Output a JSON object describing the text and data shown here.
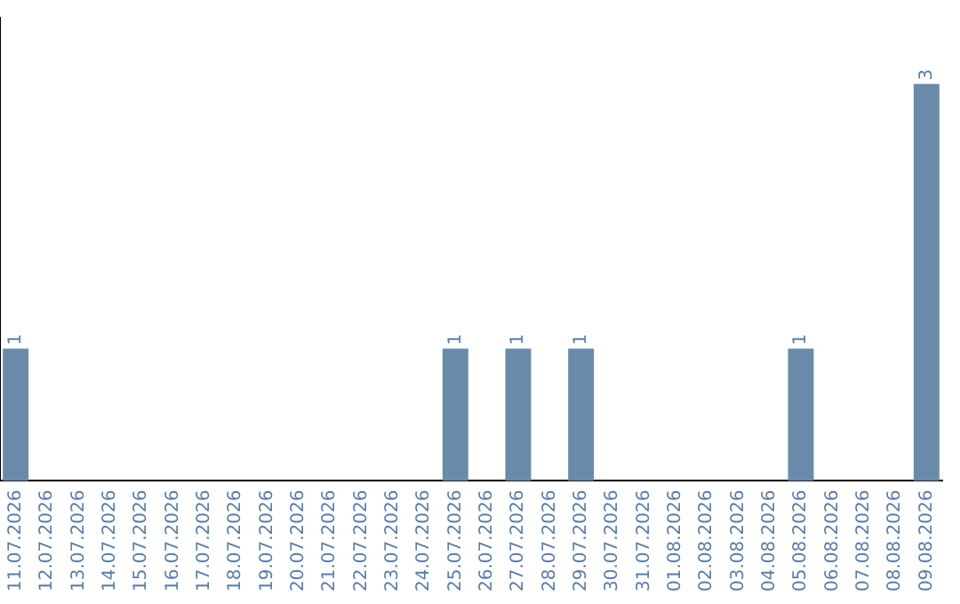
{
  "chart_data": {
    "type": "bar",
    "categories": [
      "11.07.2026",
      "12.07.2026",
      "13.07.2026",
      "14.07.2026",
      "15.07.2026",
      "16.07.2026",
      "17.07.2026",
      "18.07.2026",
      "19.07.2026",
      "20.07.2026",
      "21.07.2026",
      "22.07.2026",
      "23.07.2026",
      "24.07.2026",
      "25.07.2026",
      "26.07.2026",
      "27.07.2026",
      "28.07.2026",
      "29.07.2026",
      "30.07.2026",
      "31.07.2026",
      "01.08.2026",
      "02.08.2026",
      "03.08.2026",
      "04.08.2026",
      "05.08.2026",
      "06.08.2026",
      "07.08.2026",
      "08.08.2026",
      "09.08.2026"
    ],
    "values": [
      1,
      0,
      0,
      0,
      0,
      0,
      0,
      0,
      0,
      0,
      0,
      0,
      0,
      0,
      1,
      0,
      1,
      0,
      1,
      0,
      0,
      0,
      0,
      0,
      0,
      1,
      0,
      0,
      0,
      3
    ],
    "value_labels": [
      "1",
      null,
      null,
      null,
      null,
      null,
      null,
      null,
      null,
      null,
      null,
      null,
      null,
      null,
      "1",
      null,
      "1",
      null,
      "1",
      null,
      null,
      null,
      null,
      null,
      null,
      "1",
      null,
      null,
      null,
      "3"
    ],
    "color": "#6a8aaa",
    "tick_labels": "x",
    "grid": false,
    "legend": false
  }
}
